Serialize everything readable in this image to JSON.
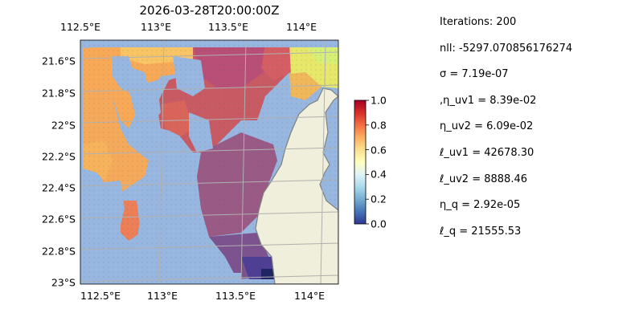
{
  "title": "2026-03-28T20:00:00Z",
  "map": {
    "lon_labels": [
      "112.5°E",
      "113°E",
      "113.5°E",
      "114°E"
    ],
    "lat_labels": [
      "21.6°S",
      "21.8°S",
      "22°S",
      "22.2°S",
      "22.4°S",
      "22.6°S",
      "22.8°S",
      "23°S"
    ],
    "lon_range": [
      112.5,
      114.2
    ],
    "lat_range": [
      -23.0,
      -21.5
    ],
    "colors": {
      "ocean": "#97b6e0",
      "land": "#efefdb",
      "coast": "#808080",
      "grid": "#b0b0b0"
    }
  },
  "colorbar": {
    "ticks": [
      "0.0",
      "0.2",
      "0.4",
      "0.6",
      "0.8",
      "1.0"
    ],
    "range": [
      0,
      1
    ],
    "colormap": "RdYlBu_r"
  },
  "stats": [
    "Iterations: 200",
    "nll: -5297.070856176274",
    "σ = 7.19e-07",
    ",η_uv1 = 8.39e-02",
    "η_uv2 = 6.09e-02",
    "ℓ_uv1 = 42678.30",
    "ℓ_uv2 = 8888.46",
    "η_q = 2.92e-05",
    "ℓ_q = 21555.53"
  ]
}
